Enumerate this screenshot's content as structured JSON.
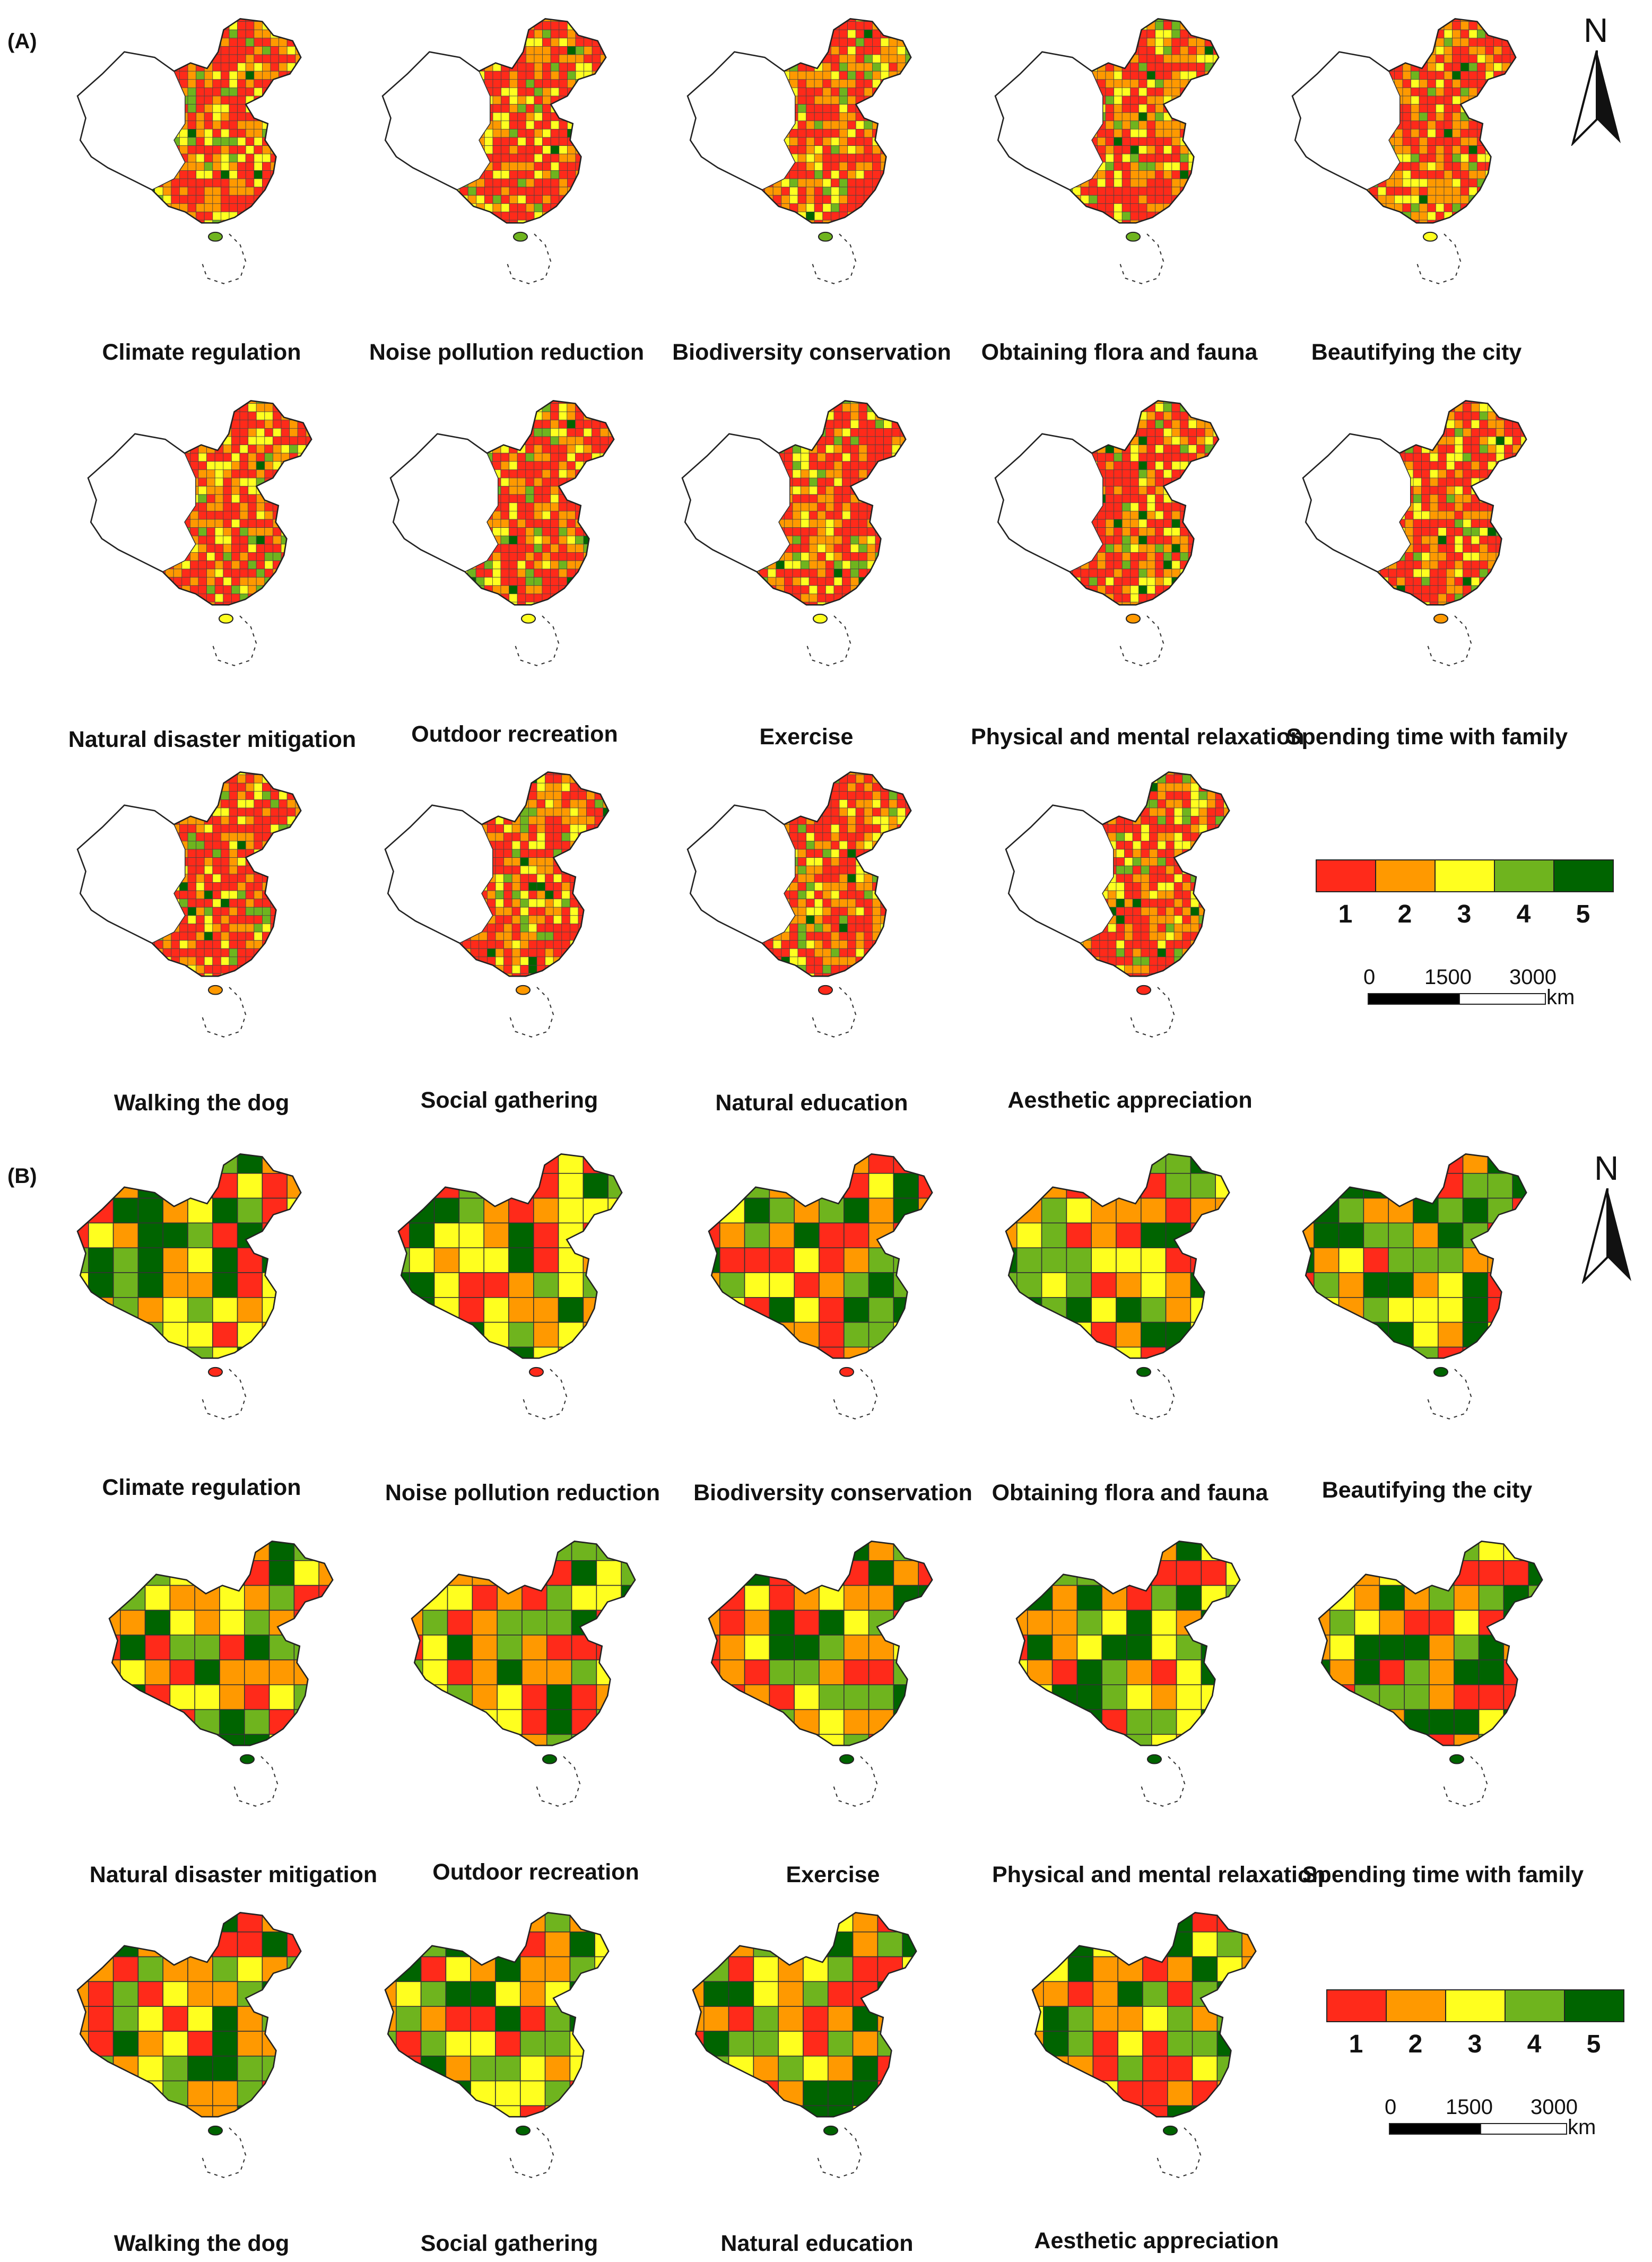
{
  "panels": [
    {
      "id": "A",
      "label": "(A)",
      "maps": [
        {
          "caption": "Climate regulation"
        },
        {
          "caption": "Noise pollution reduction"
        },
        {
          "caption": "Biodiversity conservation"
        },
        {
          "caption": "Obtaining flora and fauna"
        },
        {
          "caption": "Beautifying the city"
        },
        {
          "caption": "Natural disaster mitigation"
        },
        {
          "caption": "Outdoor recreation"
        },
        {
          "caption": "Exercise"
        },
        {
          "caption": "Physical and mental relaxation"
        },
        {
          "caption": "Spending time with family"
        },
        {
          "caption": "Walking the dog"
        },
        {
          "caption": "Social gathering"
        },
        {
          "caption": "Natural education"
        },
        {
          "caption": "Aesthetic appreciation"
        }
      ]
    },
    {
      "id": "B",
      "label": "(B)",
      "maps": [
        {
          "caption": "Climate regulation"
        },
        {
          "caption": "Noise pollution reduction"
        },
        {
          "caption": "Biodiversity conservation"
        },
        {
          "caption": "Obtaining flora and fauna"
        },
        {
          "caption": "Beautifying the city"
        },
        {
          "caption": "Natural disaster mitigation"
        },
        {
          "caption": "Outdoor recreation"
        },
        {
          "caption": "Exercise"
        },
        {
          "caption": "Physical and mental relaxation"
        },
        {
          "caption": "Spending time with family"
        },
        {
          "caption": "Walking the dog"
        },
        {
          "caption": "Social gathering"
        },
        {
          "caption": "Natural education"
        },
        {
          "caption": "Aesthetic appreciation"
        }
      ]
    }
  ],
  "legend": {
    "classes": [
      {
        "label": "1",
        "color": "#ff2a1a"
      },
      {
        "label": "2",
        "color": "#ff9900"
      },
      {
        "label": "3",
        "color": "#ffff1f"
      },
      {
        "label": "4",
        "color": "#6fb41e"
      },
      {
        "label": "5",
        "color": "#006400"
      }
    ]
  },
  "scale_bar": {
    "ticks": [
      "0",
      "1500",
      "3000"
    ],
    "unit": "km"
  },
  "north_arrow": {
    "label": "N"
  }
}
